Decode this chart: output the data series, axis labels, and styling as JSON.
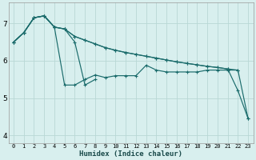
{
  "xlabel": "Humidex (Indice chaleur)",
  "bg_color": "#d8efee",
  "grid_color": "#b8d8d5",
  "line_color": "#1a6b6b",
  "xlim": [
    -0.5,
    23.5
  ],
  "ylim": [
    3.8,
    7.55
  ],
  "xticks": [
    0,
    1,
    2,
    3,
    4,
    5,
    6,
    7,
    8,
    9,
    10,
    11,
    12,
    13,
    14,
    15,
    16,
    17,
    18,
    19,
    20,
    21,
    22,
    23
  ],
  "yticks": [
    4,
    5,
    6,
    7
  ],
  "series": [
    {
      "x": [
        0,
        1,
        2,
        3,
        4,
        5,
        6,
        7,
        8,
        9,
        10,
        11,
        12,
        13,
        14,
        15,
        16,
        17,
        18,
        19,
        20,
        21,
        22,
        23
      ],
      "y": [
        6.5,
        6.75,
        7.15,
        7.2,
        6.9,
        6.85,
        6.65,
        6.55,
        6.45,
        6.35,
        6.28,
        6.22,
        6.17,
        6.12,
        6.07,
        6.02,
        5.97,
        5.93,
        5.89,
        5.85,
        5.82,
        5.78,
        5.75,
        4.45
      ]
    },
    {
      "x": [
        0,
        1,
        2,
        3,
        4,
        5,
        6,
        7,
        8,
        9,
        10,
        11,
        12,
        13,
        14,
        15,
        16,
        17,
        18,
        19,
        20,
        21,
        22,
        23
      ],
      "y": [
        6.5,
        6.75,
        7.15,
        7.2,
        6.9,
        6.85,
        6.65,
        6.55,
        6.45,
        6.35,
        6.28,
        6.22,
        6.17,
        6.12,
        6.07,
        6.02,
        5.97,
        5.93,
        5.89,
        5.85,
        5.82,
        5.78,
        5.2,
        4.45
      ]
    },
    {
      "x": [
        0,
        1,
        2,
        3,
        4,
        5,
        6,
        7,
        8,
        9,
        10,
        11,
        12,
        13,
        14,
        15,
        16,
        17,
        18,
        19,
        20,
        21,
        22
      ],
      "y": [
        6.5,
        6.75,
        7.15,
        7.2,
        6.9,
        5.35,
        5.35,
        5.5,
        5.62,
        5.55,
        5.6,
        5.6,
        5.6,
        5.88,
        5.75,
        5.7,
        5.7,
        5.7,
        5.7,
        5.75,
        5.75,
        5.75,
        5.75
      ]
    },
    {
      "x": [
        0,
        1,
        2,
        3,
        4,
        5,
        6,
        7,
        8
      ],
      "y": [
        6.5,
        6.75,
        7.15,
        7.2,
        6.9,
        6.85,
        6.5,
        5.35,
        5.5
      ]
    }
  ]
}
